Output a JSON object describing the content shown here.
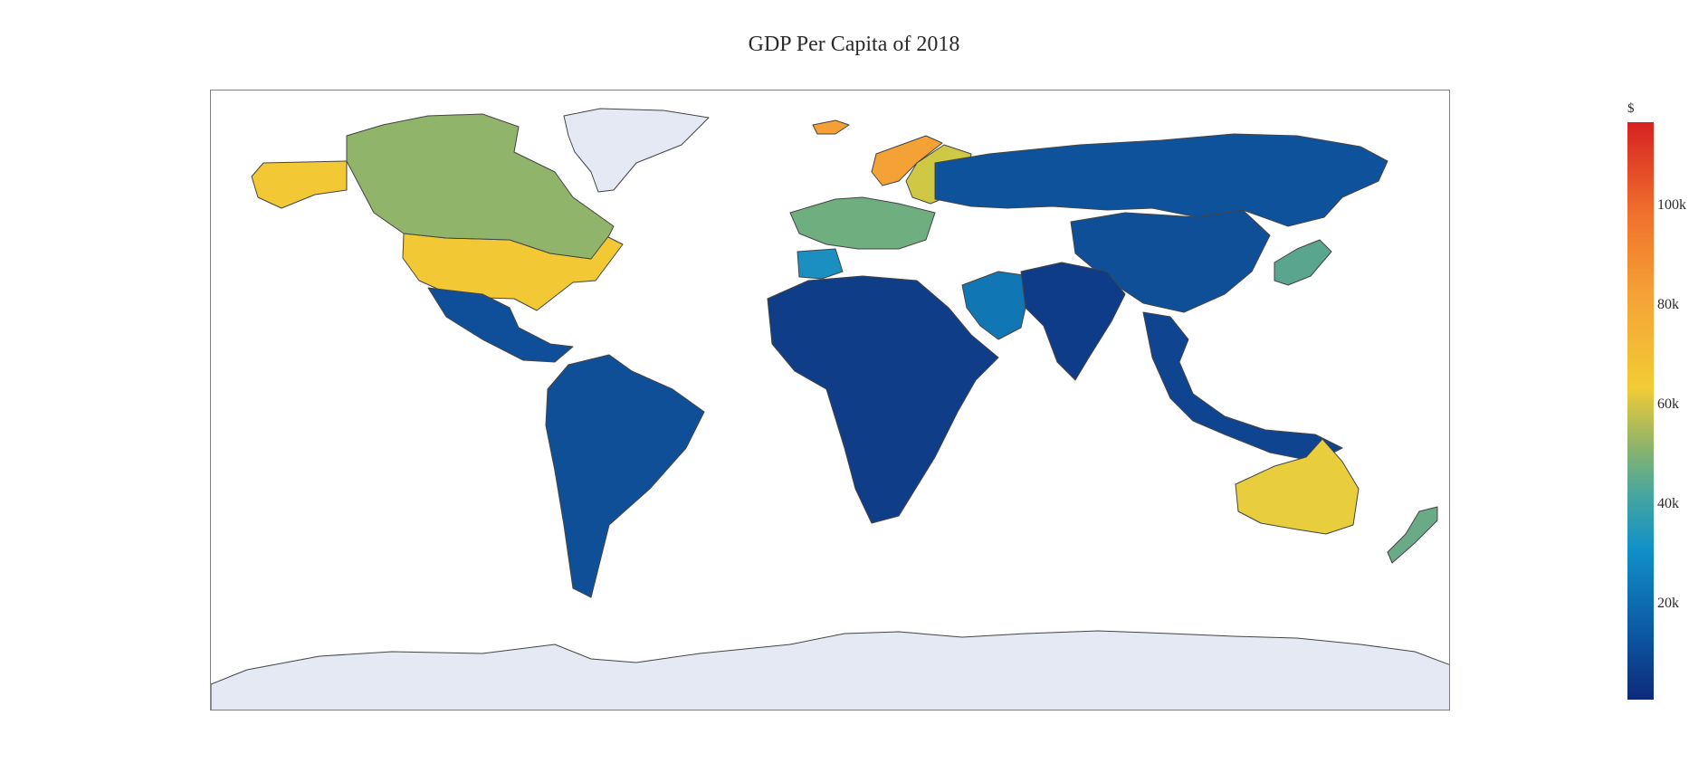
{
  "title": "GDP Per Capita of 2018",
  "colorbar": {
    "title": "$",
    "ticks": [
      "100k",
      "80k",
      "60k",
      "40k",
      "20k"
    ],
    "range": [
      0,
      116000
    ],
    "colors": [
      "#0d2a7a",
      "#0c5aa5",
      "#1190c8",
      "#4aa79c",
      "#8fb46a",
      "#f2cc35",
      "#f4a236",
      "#f0712c",
      "#d62222"
    ]
  },
  "map": {
    "projection": "equirectangular",
    "missing_color": "#e4e9f3",
    "border_color": "#444444",
    "regions": [
      {
        "name": "United States",
        "value": 62800,
        "color": "#f2c935"
      },
      {
        "name": "Alaska",
        "value": 62800,
        "color": "#f2c935"
      },
      {
        "name": "Canada",
        "value": 46200,
        "color": "#8fb46a"
      },
      {
        "name": "Greenland",
        "value": null,
        "color": "#e4e9f3"
      },
      {
        "name": "Mexico & Central America",
        "value": 9600,
        "color": "#0f4f9a"
      },
      {
        "name": "South America",
        "value": 9000,
        "color": "#0e4f97"
      },
      {
        "name": "Norway",
        "value": 81700,
        "color": "#f4a236"
      },
      {
        "name": "Sweden & Finland",
        "value": 52000,
        "color": "#cfc845"
      },
      {
        "name": "Western Europe",
        "value": 45000,
        "color": "#6fae7f"
      },
      {
        "name": "Iberia",
        "value": 30300,
        "color": "#1a8fc0"
      },
      {
        "name": "Russia",
        "value": 11300,
        "color": "#0f529c"
      },
      {
        "name": "China",
        "value": 9800,
        "color": "#0f4f98"
      },
      {
        "name": "Africa",
        "value": 2000,
        "color": "#0f3d88"
      },
      {
        "name": "Middle East",
        "value": 23000,
        "color": "#1176b4"
      },
      {
        "name": "India & South Asia",
        "value": 2000,
        "color": "#0f3c88"
      },
      {
        "name": "Japan",
        "value": 39300,
        "color": "#5aa58e"
      },
      {
        "name": "Southeast Asia",
        "value": 4000,
        "color": "#0e4490"
      },
      {
        "name": "Australia",
        "value": 57300,
        "color": "#e8ce3c"
      },
      {
        "name": "New Zealand",
        "value": 42000,
        "color": "#6aaa86"
      },
      {
        "name": "Iceland",
        "value": 73000,
        "color": "#f4a036"
      },
      {
        "name": "Antarctica",
        "value": null,
        "color": "#e4e9f3"
      }
    ]
  }
}
